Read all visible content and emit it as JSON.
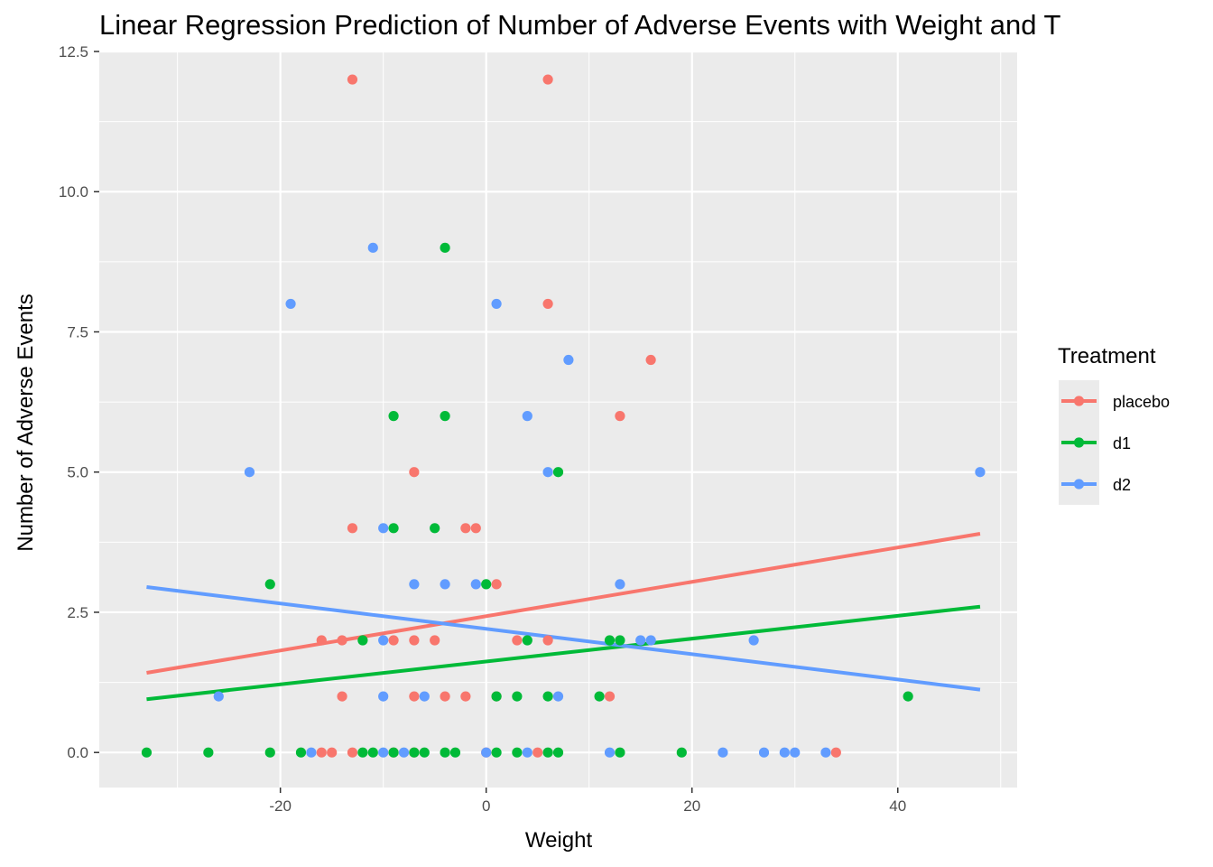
{
  "chart_data": {
    "type": "scatter",
    "title": "Linear Regression Prediction of Number of Adverse Events with Weight and T",
    "xlabel": "Weight",
    "ylabel": "Number of Adverse Events",
    "xlim": [
      -37.6,
      51.6
    ],
    "ylim": [
      -0.625,
      12.5
    ],
    "x_ticks": [
      -20,
      0,
      20,
      40
    ],
    "x_tick_labels": [
      "-20",
      "0",
      "20",
      "40"
    ],
    "y_ticks": [
      0,
      2.5,
      5,
      7.5,
      10,
      12.5
    ],
    "y_tick_labels": [
      "0.0",
      "2.5",
      "5.0",
      "7.5",
      "10.0",
      "12.5"
    ],
    "grid": true,
    "background": "#ebebeb",
    "legend": {
      "title": "Treatment",
      "position": "right"
    },
    "series": [
      {
        "name": "placebo",
        "color": "#f8766d",
        "points": [
          [
            -13,
            12
          ],
          [
            6,
            12
          ],
          [
            6,
            8
          ],
          [
            16,
            7
          ],
          [
            13,
            6
          ],
          [
            -7,
            5
          ],
          [
            -13,
            4
          ],
          [
            -2,
            4
          ],
          [
            -1,
            4
          ],
          [
            1,
            3
          ],
          [
            -16,
            2
          ],
          [
            -14,
            2
          ],
          [
            -9,
            2
          ],
          [
            -7,
            2
          ],
          [
            -5,
            2
          ],
          [
            3,
            2
          ],
          [
            6,
            2
          ],
          [
            -14,
            1
          ],
          [
            -7,
            1
          ],
          [
            -4,
            1
          ],
          [
            -2,
            1
          ],
          [
            1,
            1
          ],
          [
            12,
            1
          ],
          [
            -16,
            0
          ],
          [
            -15,
            0
          ],
          [
            -13,
            0
          ],
          [
            -9,
            0
          ],
          [
            -7,
            0
          ],
          [
            0,
            0
          ],
          [
            5,
            0
          ],
          [
            34,
            0
          ]
        ],
        "fit": [
          [
            -33,
            1.42
          ],
          [
            48,
            3.9
          ]
        ]
      },
      {
        "name": "d1",
        "color": "#00ba38",
        "points": [
          [
            -4,
            9
          ],
          [
            -9,
            6
          ],
          [
            -4,
            6
          ],
          [
            7,
            5
          ],
          [
            -9,
            4
          ],
          [
            -5,
            4
          ],
          [
            -21,
            3
          ],
          [
            0,
            3
          ],
          [
            -12,
            2
          ],
          [
            4,
            2
          ],
          [
            12,
            2
          ],
          [
            13,
            2
          ],
          [
            1,
            1
          ],
          [
            3,
            1
          ],
          [
            6,
            1
          ],
          [
            11,
            1
          ],
          [
            41,
            1
          ],
          [
            -33,
            0
          ],
          [
            -27,
            0
          ],
          [
            -21,
            0
          ],
          [
            -18,
            0
          ],
          [
            -12,
            0
          ],
          [
            -11,
            0
          ],
          [
            -9,
            0
          ],
          [
            -7,
            0
          ],
          [
            -6,
            0
          ],
          [
            -4,
            0
          ],
          [
            -3,
            0
          ],
          [
            1,
            0
          ],
          [
            3,
            0
          ],
          [
            6,
            0
          ],
          [
            7,
            0
          ],
          [
            13,
            0
          ],
          [
            19,
            0
          ]
        ],
        "fit": [
          [
            -33,
            0.95
          ],
          [
            48,
            2.6
          ]
        ]
      },
      {
        "name": "d2",
        "color": "#619cff",
        "points": [
          [
            -11,
            9
          ],
          [
            -19,
            8
          ],
          [
            1,
            8
          ],
          [
            8,
            7
          ],
          [
            4,
            6
          ],
          [
            -23,
            5
          ],
          [
            6,
            5
          ],
          [
            48,
            5
          ],
          [
            -10,
            4
          ],
          [
            -7,
            3
          ],
          [
            -4,
            3
          ],
          [
            -1,
            3
          ],
          [
            13,
            3
          ],
          [
            -10,
            2
          ],
          [
            15,
            2
          ],
          [
            16,
            2
          ],
          [
            26,
            2
          ],
          [
            -26,
            1
          ],
          [
            -10,
            1
          ],
          [
            -6,
            1
          ],
          [
            7,
            1
          ],
          [
            -17,
            0
          ],
          [
            -10,
            0
          ],
          [
            -8,
            0
          ],
          [
            0,
            0
          ],
          [
            4,
            0
          ],
          [
            12,
            0
          ],
          [
            23,
            0
          ],
          [
            27,
            0
          ],
          [
            29,
            0
          ],
          [
            30,
            0
          ],
          [
            33,
            0
          ]
        ],
        "fit": [
          [
            -33,
            2.95
          ],
          [
            48,
            1.12
          ]
        ]
      }
    ]
  }
}
